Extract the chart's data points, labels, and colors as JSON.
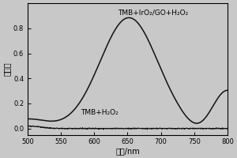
{
  "xlim": [
    500,
    800
  ],
  "ylim": [
    -0.05,
    1.0
  ],
  "xlabel": "波长/nm",
  "ylabel": "吸光度",
  "xticks": [
    500,
    550,
    600,
    650,
    700,
    750,
    800
  ],
  "yticks": [
    0.0,
    0.2,
    0.4,
    0.6,
    0.8
  ],
  "label1": "TMB+IrO₂/GO+H₂O₂",
  "label2": "TMB+H₂O₂",
  "line_color": "#111111",
  "bg_color": "#c8c8c8",
  "title_fontsize": 6.5,
  "axis_fontsize": 7,
  "tick_fontsize": 6
}
